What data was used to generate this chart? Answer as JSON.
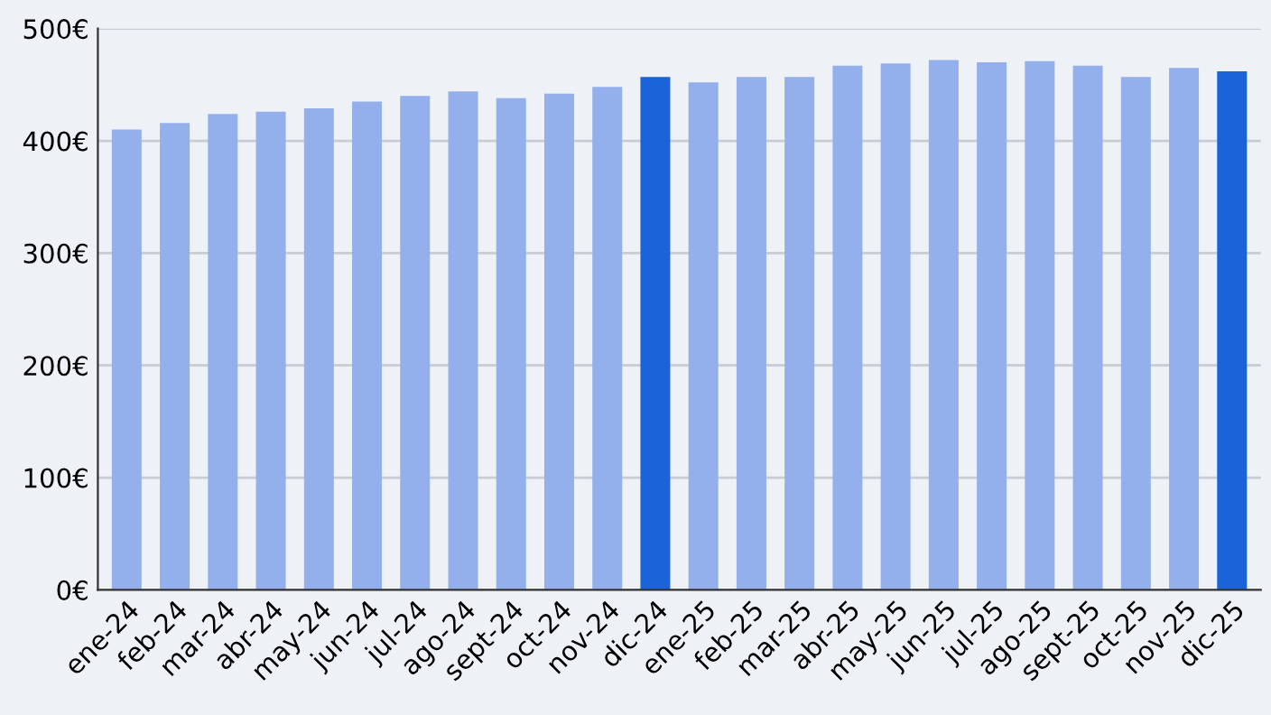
{
  "chart_data": {
    "type": "bar",
    "categories": [
      "ene-24",
      "feb-24",
      "mar-24",
      "abr-24",
      "may-24",
      "jun-24",
      "jul-24",
      "ago-24",
      "sept-24",
      "oct-24",
      "nov-24",
      "dic-24",
      "ene-25",
      "feb-25",
      "mar-25",
      "abr-25",
      "may-25",
      "jun-25",
      "jul-25",
      "ago-25",
      "sept-25",
      "oct-25",
      "nov-25",
      "dic-25"
    ],
    "values": [
      410,
      416,
      424,
      426,
      429,
      435,
      440,
      444,
      438,
      442,
      448,
      457,
      452,
      457,
      457,
      467,
      469,
      472,
      470,
      471,
      467,
      457,
      465,
      462
    ],
    "colors": [
      "#93b0ec",
      "#93b0ec",
      "#93b0ec",
      "#93b0ec",
      "#93b0ec",
      "#93b0ec",
      "#93b0ec",
      "#93b0ec",
      "#93b0ec",
      "#93b0ec",
      "#93b0ec",
      "#1a63d8",
      "#93b0ec",
      "#93b0ec",
      "#93b0ec",
      "#93b0ec",
      "#93b0ec",
      "#93b0ec",
      "#93b0ec",
      "#93b0ec",
      "#93b0ec",
      "#93b0ec",
      "#93b0ec",
      "#1a63d8"
    ],
    "ylim": [
      0,
      500
    ],
    "yticks": [
      {
        "value": 0,
        "label": "0€"
      },
      {
        "value": 100,
        "label": "100€"
      },
      {
        "value": 200,
        "label": "200€"
      },
      {
        "value": 300,
        "label": "300€"
      },
      {
        "value": 400,
        "label": "400€"
      },
      {
        "value": 500,
        "label": "500€"
      }
    ],
    "grid": "y",
    "legend": false
  }
}
